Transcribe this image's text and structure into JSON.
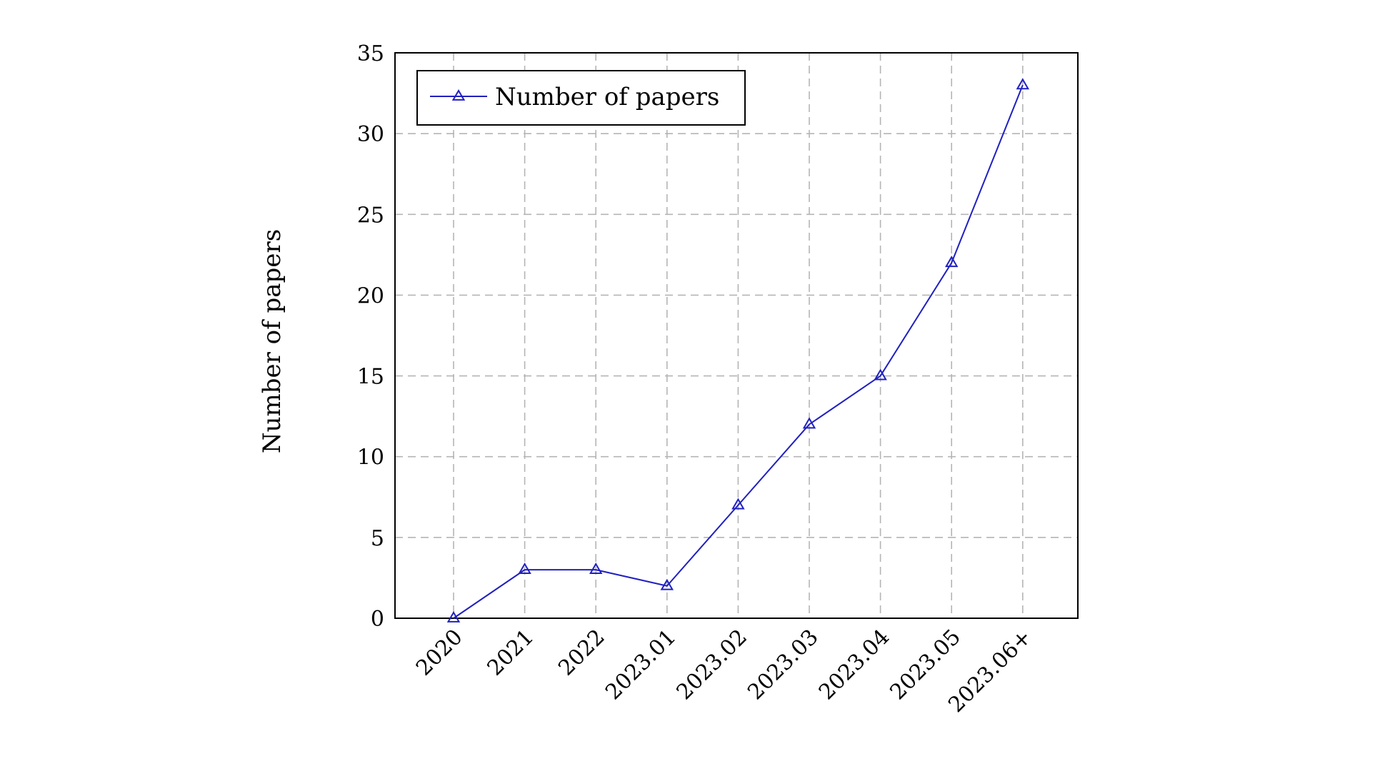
{
  "chart_data": {
    "type": "line",
    "categories": [
      "2020",
      "2021",
      "2022",
      "2023.01",
      "2023.02",
      "2023.03",
      "2023.04",
      "2023.05",
      "2023.06+"
    ],
    "series": [
      {
        "name": "Number of papers",
        "values": [
          0,
          3,
          3,
          2,
          7,
          12,
          15,
          22,
          33
        ],
        "color": "#2020c0",
        "marker": "triangle"
      }
    ],
    "title": "",
    "xlabel": "",
    "ylabel": "Number of papers",
    "ylim": [
      0,
      35
    ],
    "yticks": [
      "0",
      "5",
      "10",
      "15",
      "20",
      "25",
      "30",
      "35"
    ],
    "grid": true,
    "legend": "top-left"
  }
}
